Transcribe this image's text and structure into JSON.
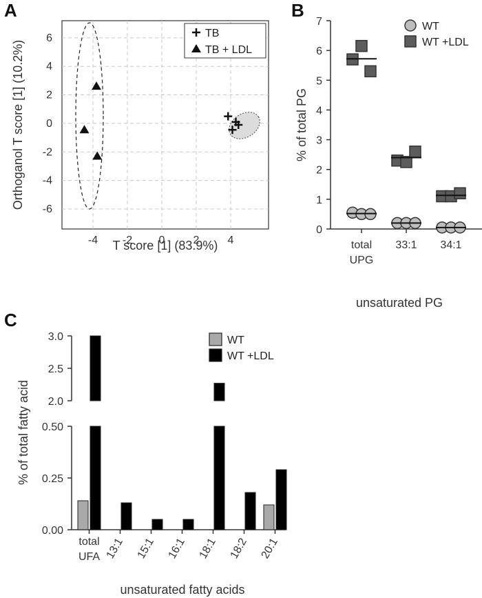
{
  "panels": {
    "a": "A",
    "b": "B",
    "c": "C"
  },
  "chart_data": [
    {
      "panel": "A",
      "type": "scatter",
      "xlabel": "T score [1] (83.9%)",
      "ylabel": "Orthoganol T score [1] (10.2%)",
      "xlim": [
        -5.8,
        6.2
      ],
      "ylim": [
        -7.4,
        7.2
      ],
      "xticks": [
        -4,
        -2,
        0,
        2,
        4
      ],
      "yticks": [
        -6,
        -4,
        -2,
        0,
        2,
        4,
        6
      ],
      "grid": true,
      "legend_position": "top-right",
      "series": [
        {
          "name": "TB",
          "marker": "plus",
          "x": [
            3.85,
            4.3,
            4.1,
            4.45
          ],
          "y": [
            0.5,
            0.1,
            -0.45,
            -0.1
          ]
        },
        {
          "name": "TB + LDL",
          "marker": "triangle",
          "x": [
            -3.8,
            -4.5,
            -3.75
          ],
          "y": [
            2.6,
            -0.45,
            -2.3
          ]
        }
      ]
    },
    {
      "panel": "B",
      "type": "scatter",
      "xlabel": "unsaturated PG",
      "ylabel": "% of total PG",
      "ylim": [
        0,
        7
      ],
      "yticks": [
        0,
        1,
        2,
        3,
        4,
        5,
        6,
        7
      ],
      "categories": [
        "total\nUPG",
        "33:1",
        "34:1"
      ],
      "legend_position": "top-right",
      "series": [
        {
          "name": "WT",
          "marker": "circle",
          "color": "#bdbdbd",
          "values": [
            [
              0.55,
              0.5,
              0.5
            ],
            [
              0.2,
              0.2,
              0.2
            ],
            [
              0.05,
              0.05,
              0.05
            ]
          ],
          "means": [
            0.52,
            0.2,
            0.05
          ]
        },
        {
          "name": "WT +LDL",
          "marker": "square",
          "color": "#5c5c5c",
          "values": [
            [
              5.7,
              6.15,
              5.3
            ],
            [
              2.3,
              2.25,
              2.6
            ],
            [
              1.1,
              1.1,
              1.2
            ]
          ],
          "means": [
            5.72,
            2.4,
            1.13
          ]
        }
      ]
    },
    {
      "panel": "C",
      "type": "bar",
      "xlabel": "unsaturated fatty acids",
      "ylabel": "% of total fatty acid",
      "categories": [
        "total\nUFA",
        "13:1",
        "15:1",
        "16:1",
        "18:1",
        "18:2",
        "20:1"
      ],
      "y_break": {
        "lower": [
          0,
          0.5
        ],
        "upper": [
          2.0,
          3.0
        ]
      },
      "yticks_lower": [
        "0.00",
        "0.25",
        "0.50"
      ],
      "yticks_upper": [
        "2.0",
        "2.5",
        "3.0"
      ],
      "legend_position": "top-right",
      "series": [
        {
          "name": "WT",
          "color": "#a9a9a9",
          "values": [
            0.14,
            0.0,
            0.0,
            0.0,
            0.0,
            0.0,
            0.12
          ]
        },
        {
          "name": "WT +LDL",
          "color": "#000000",
          "values": [
            3.0,
            0.13,
            0.05,
            0.05,
            2.27,
            0.18,
            0.29
          ]
        }
      ]
    }
  ]
}
